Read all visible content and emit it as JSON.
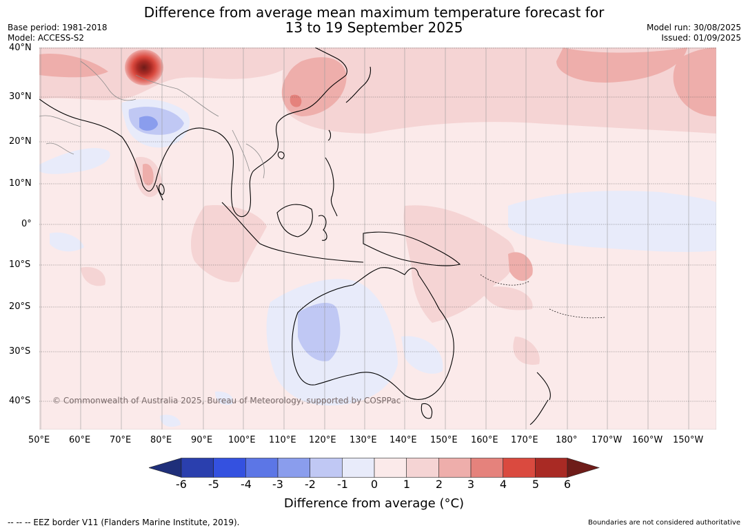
{
  "title": {
    "line1": "Difference from average mean maximum temperature forecast for",
    "line2": "13 to 19 September 2025"
  },
  "meta": {
    "base_period": "Base period: 1981-2018",
    "model": "Model: ACCESS-S2",
    "model_run": "Model run: 30/08/2025",
    "issued": "Issued: 01/09/2025"
  },
  "map": {
    "lat_labels": [
      "40°N",
      "30°N",
      "20°N",
      "10°N",
      "0°",
      "10°S",
      "20°S",
      "30°S",
      "40°S"
    ],
    "lon_labels": [
      "50°E",
      "60°E",
      "70°E",
      "80°E",
      "90°E",
      "100°E",
      "110°E",
      "120°E",
      "130°E",
      "140°E",
      "150°E",
      "160°E",
      "170°E",
      "180°",
      "170°W",
      "160°W",
      "150°W"
    ],
    "copyright": "© Commonwealth of Australia 2025, Bureau of Meteorology, supported by COSPPac",
    "bins": [
      {
        "range": "< -6",
        "color": "#1f2f7a"
      },
      {
        "range": "-6 to -5",
        "color": "#2a3fae"
      },
      {
        "range": "-5 to -4",
        "color": "#3451e0"
      },
      {
        "range": "-4 to -3",
        "color": "#5c76e6"
      },
      {
        "range": "-3 to -2",
        "color": "#8a9ded"
      },
      {
        "range": "-2 to -1",
        "color": "#c0c8f4"
      },
      {
        "range": "-1 to 0",
        "color": "#e8ebfa"
      },
      {
        "range": "0 to 1",
        "color": "#fbeaea"
      },
      {
        "range": "1 to 2",
        "color": "#f5d4d4"
      },
      {
        "range": "2 to 3",
        "color": "#eeaeab"
      },
      {
        "range": "3 to 4",
        "color": "#e5827c"
      },
      {
        "range": "4 to 5",
        "color": "#da4a3f"
      },
      {
        "range": "5 to 6",
        "color": "#a92a24"
      },
      {
        "range": "> 6",
        "color": "#6e1c19"
      }
    ],
    "background_color": "#fbeaea"
  },
  "colorbar": {
    "ticks": [
      "-6",
      "-5",
      "-4",
      "-3",
      "-2",
      "-1",
      "0",
      "1",
      "2",
      "3",
      "4",
      "5",
      "6"
    ],
    "label": "Difference from average (°C)"
  },
  "footer": {
    "eez": "--  --  -- EEZ border V11 (Flanders Marine Institute, 2019).",
    "boundaries": "Boundaries are not considered authoritative"
  }
}
